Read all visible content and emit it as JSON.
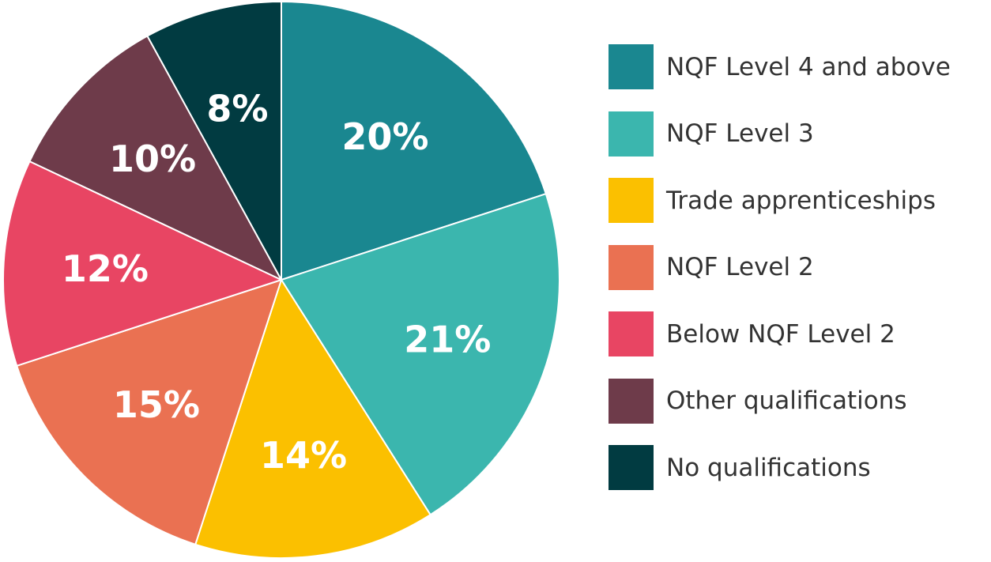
{
  "chart_data": {
    "type": "pie",
    "categories": [
      "NQF Level 4 and above",
      "NQF Level 3",
      "Trade apprenticeships",
      "NQF Level 2",
      "Below NQF Level 2",
      "Other qualifications",
      "No qualifications"
    ],
    "values": [
      20,
      21,
      14,
      15,
      12,
      10,
      8
    ],
    "data_labels": [
      "20%",
      "21%",
      "14%",
      "15%",
      "12%",
      "10%",
      "8%"
    ],
    "colors": [
      "#1a8790",
      "#3bb6ae",
      "#fbc000",
      "#ea7152",
      "#e84563",
      "#6e3b4a",
      "#013b41"
    ],
    "start": "12 o'clock",
    "direction": "clockwise",
    "legend": "right"
  }
}
